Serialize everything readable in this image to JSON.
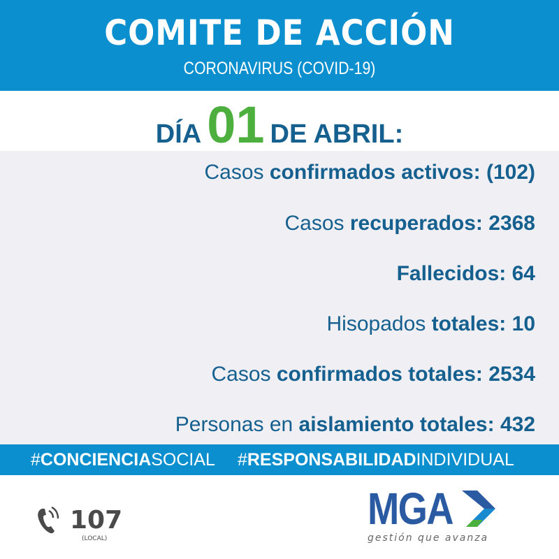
{
  "header": {
    "title": "COMITE DE ACCIÓN",
    "subtitle": "CORONAVIRUS (COVID-19)"
  },
  "date": {
    "prefix": "DÍA",
    "day": "01",
    "suffix": "DE ABRIL:"
  },
  "stats": [
    {
      "light": "Casos ",
      "bold": "confirmados activos: (102)"
    },
    {
      "light": "Casos ",
      "bold": "recuperados: 2368"
    },
    {
      "light": "",
      "bold": "Fallecidos: 64"
    },
    {
      "light": "Hisopados ",
      "bold": "totales: 10"
    },
    {
      "light": "Casos ",
      "bold": "confirmados totales: 2534"
    },
    {
      "light": "Personas en ",
      "bold": "aislamiento totales: 432"
    }
  ],
  "hashtags": [
    {
      "hash": "#",
      "bold": "CONCIENCIA",
      "light": "SOCIAL"
    },
    {
      "hash": "#",
      "bold": "RESPONSABILIDAD",
      "light": "INDIVIDUAL"
    }
  ],
  "footer": {
    "phone_icon": "phone-icon",
    "phone": "107",
    "phone_note": "(LOCAL)",
    "logo_text": "MGA",
    "slogan": "gestión que avanza"
  },
  "colors": {
    "brand_blue": "#0b8fce",
    "text_blue": "#15608f",
    "green": "#4caf3e",
    "logo_blue": "#2a5aa2"
  }
}
